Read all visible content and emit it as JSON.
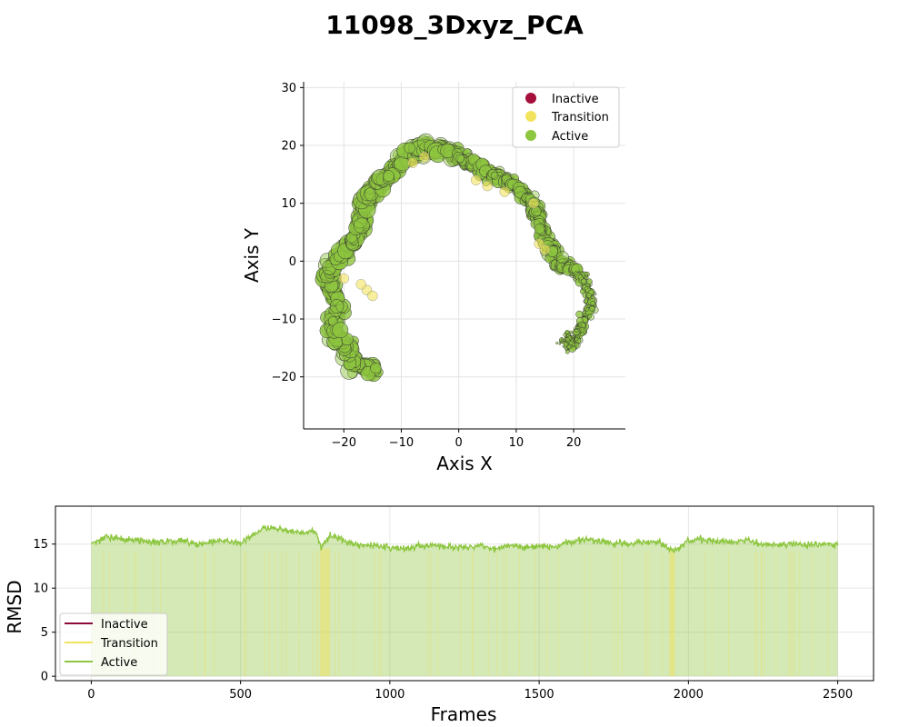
{
  "chart_data": [
    {
      "type": "scatter",
      "title": "11098_3Dxyz_PCA",
      "xlabel": "Axis X",
      "ylabel": "Axis Y",
      "xlim": [
        -27,
        29
      ],
      "ylim": [
        -29,
        31
      ],
      "xticks": [
        -20,
        -10,
        0,
        10,
        20
      ],
      "yticks": [
        -20,
        -10,
        0,
        10,
        20,
        30
      ],
      "grid": true,
      "legend_position": "top-right",
      "legend": [
        {
          "label": "Inactive",
          "color": "#a50f3c"
        },
        {
          "label": "Transition",
          "color": "#f2e35e"
        },
        {
          "label": "Active",
          "color": "#8dc63f"
        }
      ],
      "series": [
        {
          "name": "Active",
          "color": "#8dc63f",
          "path": [
            [
              -15,
              -19
            ],
            [
              -18,
              -18
            ],
            [
              -20,
              -15
            ],
            [
              -22,
              -12
            ],
            [
              -21,
              -8
            ],
            [
              -22,
              -4
            ],
            [
              -23,
              -2
            ],
            [
              -21,
              0
            ],
            [
              -19,
              3
            ],
            [
              -17,
              6
            ],
            [
              -17,
              9
            ],
            [
              -16,
              11
            ],
            [
              -14,
              13
            ],
            [
              -12,
              15
            ],
            [
              -10,
              17
            ],
            [
              -8,
              19
            ],
            [
              -5,
              20
            ],
            [
              -2,
              19
            ],
            [
              0,
              18
            ],
            [
              2,
              17
            ],
            [
              4,
              16
            ],
            [
              6,
              15
            ],
            [
              8,
              14
            ],
            [
              10,
              13
            ],
            [
              12,
              11
            ],
            [
              13,
              9
            ],
            [
              14,
              7
            ],
            [
              15,
              4
            ],
            [
              16,
              2
            ],
            [
              17,
              0
            ],
            [
              19,
              -1
            ],
            [
              21,
              -2
            ],
            [
              22,
              -4
            ],
            [
              23,
              -6
            ],
            [
              23,
              -8
            ],
            [
              22,
              -10
            ],
            [
              21,
              -12
            ],
            [
              20,
              -14
            ],
            [
              19,
              -15
            ]
          ]
        },
        {
          "name": "Transition",
          "color": "#f2e35e",
          "points": [
            [
              -16,
              -5
            ],
            [
              -17,
              -4
            ],
            [
              -15,
              -6
            ],
            [
              -8,
              17
            ],
            [
              -6,
              18
            ],
            [
              3,
              14
            ],
            [
              5,
              13
            ],
            [
              8,
              12
            ],
            [
              14,
              3
            ],
            [
              15,
              2
            ],
            [
              13,
              10
            ],
            [
              -20,
              -3
            ]
          ]
        }
      ]
    },
    {
      "type": "line",
      "xlabel": "Frames",
      "ylabel": "RMSD",
      "xlim": [
        -120,
        2620
      ],
      "ylim": [
        -0.5,
        19.3
      ],
      "xticks": [
        0,
        500,
        1000,
        1500,
        2000,
        2500
      ],
      "yticks": [
        0,
        5,
        10,
        15
      ],
      "grid": true,
      "legend_position": "lower-left",
      "legend": [
        {
          "label": "Inactive",
          "color": "#8b0a3a"
        },
        {
          "label": "Transition",
          "color": "#f2e35e"
        },
        {
          "label": "Active",
          "color": "#8dc63f"
        }
      ],
      "series": [
        {
          "name": "Active",
          "color": "#8dc63f",
          "x": [
            0,
            50,
            100,
            150,
            200,
            250,
            300,
            350,
            400,
            450,
            500,
            550,
            580,
            600,
            650,
            700,
            750,
            770,
            800,
            850,
            900,
            950,
            1000,
            1050,
            1100,
            1150,
            1200,
            1250,
            1300,
            1350,
            1400,
            1450,
            1500,
            1550,
            1600,
            1650,
            1700,
            1750,
            1800,
            1850,
            1900,
            1950,
            2000,
            2050,
            2100,
            2150,
            2200,
            2250,
            2300,
            2350,
            2400,
            2450,
            2500
          ],
          "y": [
            15,
            15.8,
            15.6,
            15.4,
            15.3,
            15.2,
            15.4,
            15.0,
            15.2,
            15.3,
            15.2,
            16.2,
            17.0,
            16.8,
            16.5,
            16.2,
            16.5,
            14.6,
            16.0,
            15.3,
            14.8,
            14.9,
            14.6,
            14.5,
            14.8,
            14.9,
            14.7,
            14.6,
            14.8,
            14.5,
            14.9,
            14.6,
            14.8,
            14.7,
            15.2,
            15.5,
            15.4,
            15.1,
            15.0,
            15.2,
            15.3,
            14.2,
            15.4,
            15.5,
            15.3,
            15.2,
            15.4,
            15.0,
            14.9,
            15.1,
            14.8,
            15.0,
            14.9
          ]
        },
        {
          "name": "Transition",
          "color": "#f2e35e",
          "bands": [
            [
              765,
              800
            ],
            [
              1935,
              1955
            ]
          ]
        }
      ]
    }
  ]
}
